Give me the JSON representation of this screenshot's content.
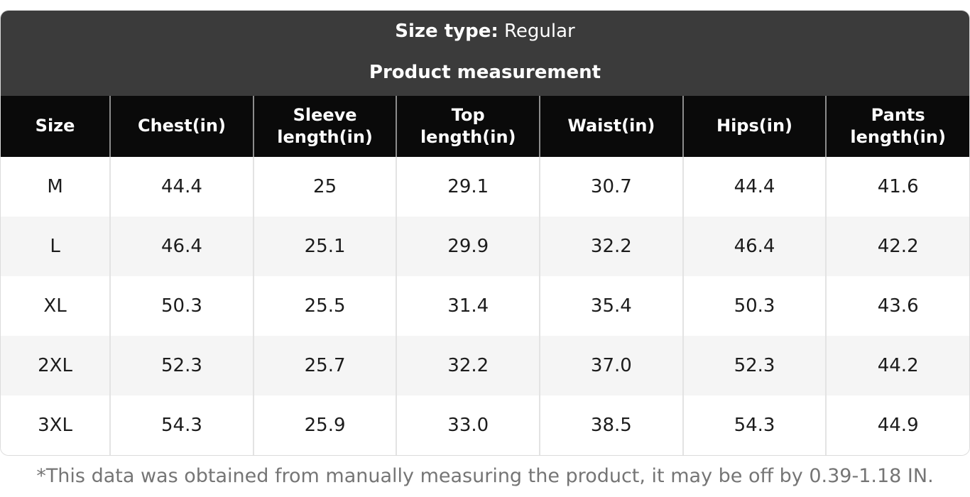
{
  "chart_data": {
    "type": "table",
    "size_type_label": "Size type:",
    "size_type_value": "Regular",
    "subtitle": "Product measurement",
    "columns": [
      "Size",
      "Chest(in)",
      "Sleeve length(in)",
      "Top length(in)",
      "Waist(in)",
      "Hips(in)",
      "Pants length(in)"
    ],
    "rows": [
      [
        "M",
        "44.4",
        "25",
        "29.1",
        "30.7",
        "44.4",
        "41.6"
      ],
      [
        "L",
        "46.4",
        "25.1",
        "29.9",
        "32.2",
        "46.4",
        "42.2"
      ],
      [
        "XL",
        "50.3",
        "25.5",
        "31.4",
        "35.4",
        "50.3",
        "43.6"
      ],
      [
        "2XL",
        "52.3",
        "25.7",
        "32.2",
        "37.0",
        "52.3",
        "44.2"
      ],
      [
        "3XL",
        "54.3",
        "25.9",
        "33.0",
        "38.5",
        "54.3",
        "44.9"
      ]
    ],
    "footnote": "*This data was obtained from manually measuring the product, it may be off by 0.39-1.18 IN."
  },
  "colors": {
    "band_bg": "#3b3b3b",
    "header_bg": "#0a0a0a",
    "header_text": "#ffffff",
    "row_alt_bg": "#f5f5f5",
    "header_divider": "#8c8c8c",
    "body_divider": "#e3e3e3",
    "card_border": "#dcdcdc",
    "footnote_text": "#757575"
  }
}
